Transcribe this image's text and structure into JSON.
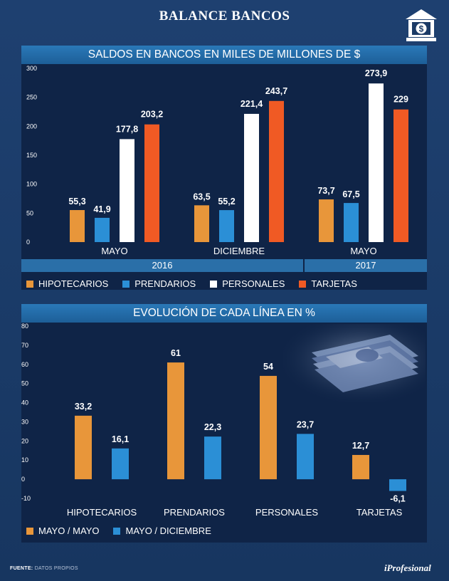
{
  "header": {
    "title": "BALANCE BANCOS"
  },
  "colors": {
    "hipotecarios": "#e8963a",
    "prendarios": "#2b8fd6",
    "personales": "#ffffff",
    "tarjetas": "#f05a24",
    "mayo_mayo": "#e8963a",
    "mayo_diciembre": "#2b8fd6"
  },
  "chart_data": [
    {
      "type": "bar",
      "title": "SALDOS EN BANCOS EN  MILES DE MILLONES DE $",
      "categories": [
        "MAYO",
        "DICIEMBRE",
        "MAYO"
      ],
      "groups": [
        {
          "label": "2016",
          "categories": [
            "MAYO",
            "DICIEMBRE"
          ]
        },
        {
          "label": "2017",
          "categories": [
            "MAYO"
          ]
        }
      ],
      "series": [
        {
          "name": "HIPOTECARIOS",
          "values": [
            55.3,
            63.5,
            73.7
          ],
          "labels": [
            "55,3",
            "63,5",
            "73,7"
          ]
        },
        {
          "name": "PRENDARIOS",
          "values": [
            41.9,
            55.2,
            67.5
          ],
          "labels": [
            "41,9",
            "55,2",
            "67,5"
          ]
        },
        {
          "name": "PERSONALES",
          "values": [
            177.8,
            221.4,
            273.9
          ],
          "labels": [
            "177,8",
            "221,4",
            "273,9"
          ]
        },
        {
          "name": "TARJETAS",
          "values": [
            203.2,
            243.7,
            229
          ],
          "labels": [
            "203,2",
            "243,7",
            "229"
          ]
        }
      ],
      "ylim": [
        0,
        300
      ],
      "yticks": [
        "0",
        "50",
        "100",
        "150",
        "200",
        "250",
        "300"
      ],
      "legend": "bottom"
    },
    {
      "type": "bar",
      "title": "EVOLUCIÓN DE CADA LÍNEA EN %",
      "categories": [
        "HIPOTECARIOS",
        "PRENDARIOS",
        "PERSONALES",
        "TARJETAS"
      ],
      "series": [
        {
          "name": "MAYO / MAYO",
          "values": [
            33.2,
            61,
            54,
            12.7
          ],
          "labels": [
            "33,2",
            "61",
            "54",
            "12,7"
          ]
        },
        {
          "name": "MAYO / DICIEMBRE",
          "values": [
            16.1,
            22.3,
            23.7,
            -6.1
          ],
          "labels": [
            "16,1",
            "22,3",
            "23,7",
            "-6,1"
          ]
        }
      ],
      "ylim": [
        -10,
        80
      ],
      "yticks": [
        "-10",
        "0",
        "10",
        "20",
        "30",
        "40",
        "50",
        "60",
        "70",
        "80"
      ],
      "legend": "bottom"
    }
  ],
  "footer": {
    "source_label": "FUENTE:",
    "source_text": "DATOS PROPIOS",
    "brand": "iProfesional"
  }
}
